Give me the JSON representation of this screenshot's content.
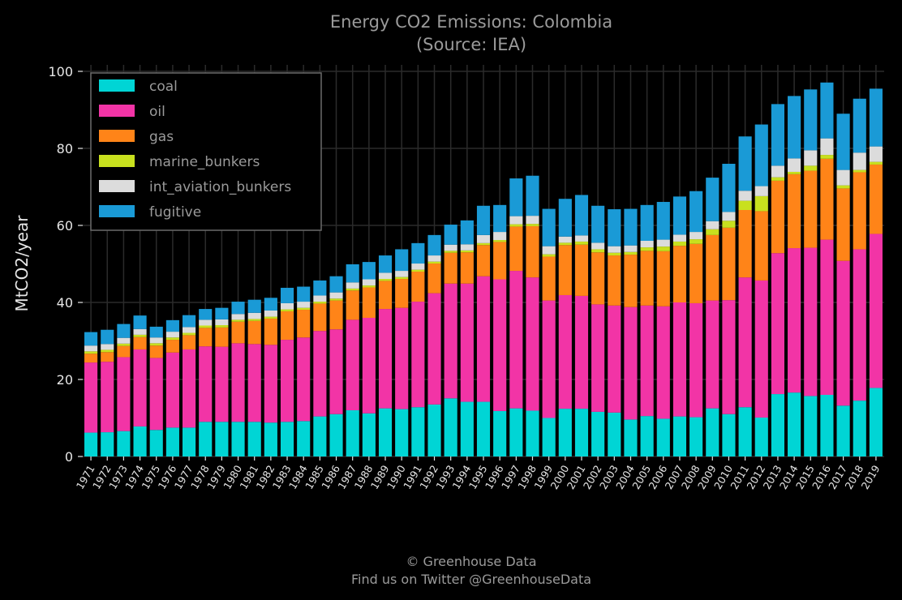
{
  "chart_data": {
    "type": "bar",
    "stacked": true,
    "title": "Energy CO2 Emissions: Colombia",
    "subtitle": "(Source: IEA)",
    "xlabel": "",
    "ylabel": "MtCO2/year",
    "ylim": [
      0,
      100
    ],
    "yticks": [
      0,
      20,
      40,
      60,
      80,
      100
    ],
    "grid": true,
    "legend_position": "top-left",
    "background_color": "#000000",
    "categories": [
      "1971",
      "1972",
      "1973",
      "1974",
      "1975",
      "1976",
      "1977",
      "1978",
      "1979",
      "1980",
      "1981",
      "1982",
      "1983",
      "1984",
      "1985",
      "1986",
      "1987",
      "1988",
      "1989",
      "1990",
      "1991",
      "1992",
      "1993",
      "1994",
      "1995",
      "1996",
      "1997",
      "1998",
      "1999",
      "2000",
      "2001",
      "2002",
      "2003",
      "2004",
      "2005",
      "2006",
      "2007",
      "2008",
      "2009",
      "2010",
      "2011",
      "2012",
      "2013",
      "2014",
      "2015",
      "2016",
      "2017",
      "2018",
      "2019"
    ],
    "series": [
      {
        "name": "coal",
        "color": "#00d5d5",
        "values": [
          6.2,
          6.3,
          6.6,
          7.8,
          6.9,
          7.5,
          7.5,
          9.0,
          9.0,
          9.0,
          9.0,
          8.8,
          9.0,
          9.2,
          10.4,
          11.0,
          12.0,
          11.2,
          12.5,
          12.3,
          12.8,
          13.5,
          15.1,
          14.2,
          14.2,
          11.8,
          12.5,
          11.9,
          10.0,
          12.4,
          12.4,
          11.6,
          11.4,
          9.6,
          10.5,
          9.8,
          10.4,
          10.2,
          12.5,
          11.0,
          12.8,
          10.1,
          16.2,
          16.6,
          15.7,
          16.0,
          13.2,
          14.5,
          17.8
        ]
      },
      {
        "name": "oil",
        "color": "#f234a6",
        "values": [
          18.2,
          18.3,
          19.2,
          20.0,
          18.7,
          19.5,
          20.3,
          19.6,
          19.5,
          20.4,
          20.2,
          20.2,
          21.3,
          21.7,
          22.2,
          22.0,
          23.5,
          24.8,
          25.8,
          26.3,
          27.4,
          28.9,
          29.8,
          30.7,
          32.6,
          34.2,
          35.7,
          34.6,
          30.5,
          29.5,
          29.3,
          27.9,
          27.8,
          29.2,
          28.7,
          29.2,
          29.6,
          29.6,
          28.0,
          29.6,
          33.7,
          35.6,
          36.6,
          37.5,
          38.5,
          40.3,
          37.6,
          39.3,
          40.0
        ]
      },
      {
        "name": "gas",
        "color": "#ff8418",
        "values": [
          2.3,
          2.5,
          2.9,
          3.2,
          3.2,
          3.3,
          3.7,
          4.8,
          5.0,
          5.6,
          6.0,
          6.8,
          7.4,
          7.2,
          7.1,
          7.5,
          7.6,
          7.9,
          7.3,
          7.5,
          7.8,
          7.7,
          8.0,
          8.1,
          8.1,
          9.7,
          11.5,
          13.3,
          11.4,
          13.0,
          13.3,
          13.5,
          13.0,
          13.6,
          14.2,
          14.3,
          14.7,
          15.4,
          17.0,
          18.8,
          17.5,
          18.0,
          18.8,
          19.2,
          20.0,
          21.0,
          18.8,
          20.0,
          18.0
        ]
      },
      {
        "name": "marine_bunkers",
        "color": "#c8e01e",
        "values": [
          0.6,
          0.6,
          0.6,
          0.6,
          0.6,
          0.6,
          0.6,
          0.6,
          0.6,
          0.5,
          0.5,
          0.5,
          0.5,
          0.5,
          0.5,
          0.5,
          0.5,
          0.5,
          0.5,
          0.5,
          0.5,
          0.5,
          0.5,
          0.5,
          0.5,
          0.5,
          0.6,
          0.6,
          0.6,
          0.6,
          0.8,
          0.8,
          0.7,
          0.7,
          0.9,
          1.2,
          1.1,
          1.2,
          1.5,
          1.8,
          2.4,
          3.9,
          0.9,
          0.6,
          1.3,
          1.0,
          0.8,
          0.6,
          0.7
        ]
      },
      {
        "name": "int_aviation_bunkers",
        "color": "#dcdcdc",
        "values": [
          1.5,
          1.5,
          1.5,
          1.5,
          1.5,
          1.5,
          1.5,
          1.5,
          1.5,
          1.5,
          1.6,
          1.6,
          1.6,
          1.6,
          1.6,
          1.6,
          1.6,
          1.6,
          1.6,
          1.6,
          1.6,
          1.6,
          1.6,
          1.6,
          2.1,
          2.1,
          2.1,
          2.1,
          2.1,
          1.6,
          1.6,
          1.7,
          1.7,
          1.7,
          1.7,
          1.8,
          1.8,
          1.9,
          2.1,
          2.3,
          2.6,
          2.6,
          3.0,
          3.5,
          4.0,
          4.3,
          4.0,
          4.5,
          4.0
        ]
      },
      {
        "name": "fugitive",
        "color": "#1a9ad6",
        "values": [
          3.5,
          3.7,
          3.6,
          3.5,
          2.8,
          3.0,
          3.1,
          2.8,
          3.0,
          3.2,
          3.4,
          3.3,
          4.0,
          3.9,
          3.9,
          4.2,
          4.7,
          4.5,
          4.5,
          5.6,
          5.3,
          5.3,
          5.2,
          6.2,
          7.6,
          7.0,
          9.8,
          10.4,
          9.7,
          9.8,
          10.5,
          9.6,
          9.6,
          9.5,
          9.3,
          9.8,
          9.9,
          10.6,
          11.3,
          12.5,
          14.1,
          16.0,
          16.0,
          16.2,
          15.8,
          14.5,
          14.6,
          14.0,
          15.0
        ]
      }
    ]
  },
  "footer": {
    "copyright": "© Greenhouse Data",
    "twitter": "Find us on Twitter @GreenhouseData"
  }
}
